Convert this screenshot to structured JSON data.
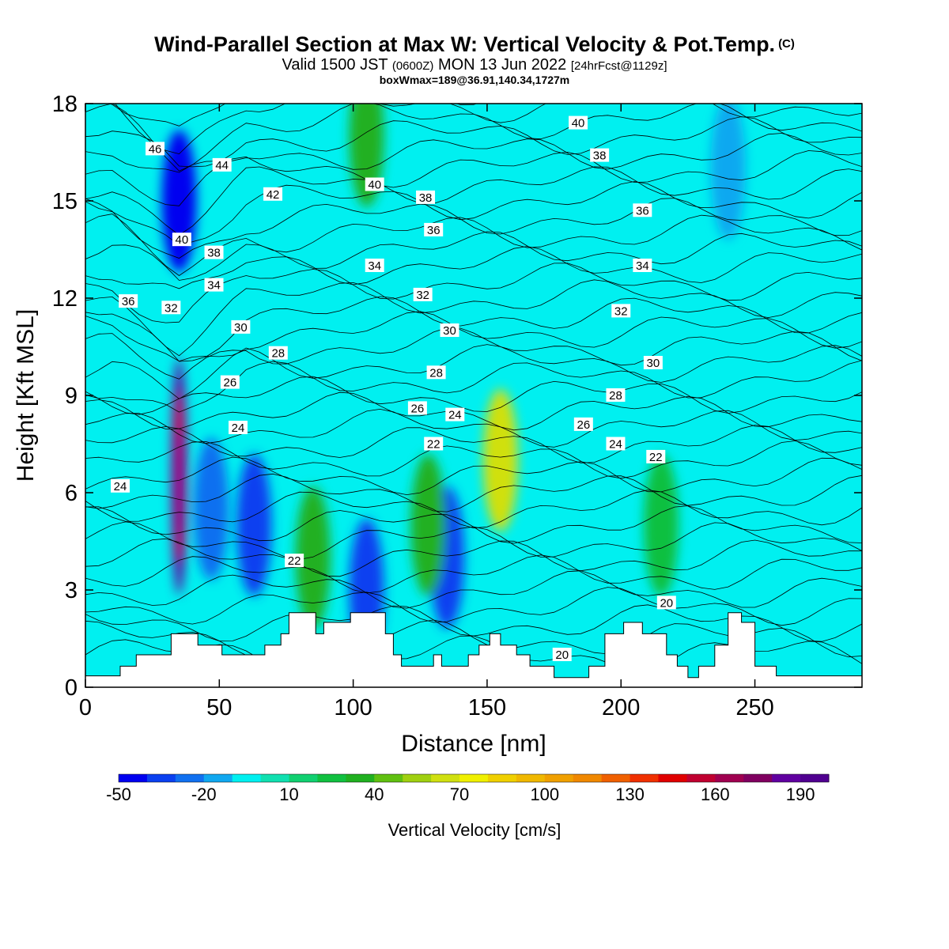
{
  "title": "Wind-Parallel Section at Max W: Vertical Velocity & Pot.Temp.",
  "title_mark": "(C)",
  "valid_prefix": "Valid 1500 JST",
  "valid_utc": "(0600Z)",
  "valid_date": "MON 13 Jun 2022",
  "forecast": "[24hrFcst@1129z]",
  "box_info": "boxWmax=189@36.91,140.34,1727m",
  "chart_data": {
    "type": "heatmap",
    "xlabel": "Distance [nm]",
    "ylabel": "Height [Kft MSL]",
    "xlim": [
      0,
      290
    ],
    "ylim": [
      0,
      18
    ],
    "x_ticks": [
      0,
      50,
      100,
      150,
      200,
      250
    ],
    "y_ticks": [
      0,
      3,
      6,
      9,
      12,
      15,
      18
    ],
    "grid": false,
    "colorbar": {
      "title": "Vertical Velocity [cm/s]",
      "levels": [
        -50,
        -40,
        -30,
        -20,
        -10,
        0,
        10,
        20,
        30,
        40,
        50,
        60,
        70,
        80,
        90,
        100,
        110,
        120,
        130,
        140,
        150,
        160,
        170,
        180,
        190,
        200
      ],
      "labels": [
        "-50",
        "-20",
        "10",
        "40",
        "70",
        "100",
        "130",
        "160",
        "190"
      ],
      "label_values": [
        -50,
        -20,
        10,
        40,
        70,
        100,
        130,
        160,
        190
      ],
      "colors": [
        "#0000f0",
        "#0a40f0",
        "#1070f0",
        "#10a8f0",
        "#00f0f0",
        "#10e0b0",
        "#10d070",
        "#10c040",
        "#20b020",
        "#60c010",
        "#a0d010",
        "#d0e010",
        "#f0f000",
        "#f0d000",
        "#f0b800",
        "#f0a000",
        "#f08800",
        "#f06000",
        "#f03000",
        "#e00000",
        "#c00030",
        "#a00050",
        "#800060",
        "#6000a0",
        "#500090"
      ]
    },
    "background_fill": "#00f0f0",
    "vertical_velocity_features": [
      {
        "x": 35,
        "y": 6.5,
        "value": 189
      },
      {
        "x": 35,
        "y": 15,
        "value": -50
      },
      {
        "x": 63,
        "y": 5,
        "value": -40
      },
      {
        "x": 47,
        "y": 5.5,
        "value": -30
      },
      {
        "x": 105,
        "y": 3,
        "value": -40
      },
      {
        "x": 135,
        "y": 4,
        "value": -40
      },
      {
        "x": 155,
        "y": 7,
        "value": 60
      },
      {
        "x": 128,
        "y": 5,
        "value": 30
      },
      {
        "x": 85,
        "y": 4,
        "value": 30
      },
      {
        "x": 105,
        "y": 17,
        "value": 30
      },
      {
        "x": 215,
        "y": 5,
        "value": 20
      },
      {
        "x": 240,
        "y": 16,
        "value": -20
      }
    ],
    "terrain_profile": {
      "x": [
        0,
        13,
        13,
        19,
        19,
        32,
        32,
        42,
        42,
        51,
        51,
        67,
        67,
        73,
        73,
        76,
        76,
        86,
        86,
        89,
        89,
        92,
        92,
        99,
        99,
        112,
        112,
        115,
        115,
        118,
        118,
        121,
        121,
        130,
        130,
        133,
        133,
        138,
        138,
        143,
        143,
        147,
        147,
        151,
        151,
        155,
        155,
        161,
        161,
        166,
        166,
        170,
        170,
        175,
        175,
        188,
        188,
        194,
        194,
        201,
        201,
        204,
        204,
        208,
        208,
        217,
        217,
        221,
        221,
        225,
        225,
        229,
        229,
        235,
        235,
        240,
        240,
        245,
        245,
        250,
        250,
        258,
        258,
        263,
        263,
        272,
        272,
        290
      ],
      "height": [
        0.35,
        0.35,
        0.65,
        0.65,
        1.0,
        1.0,
        1.65,
        1.65,
        1.3,
        1.3,
        1.0,
        1.0,
        1.3,
        1.3,
        1.65,
        1.65,
        2.3,
        2.3,
        1.65,
        1.65,
        2.0,
        2.0,
        2.0,
        2.0,
        2.3,
        2.3,
        1.65,
        1.65,
        1.0,
        1.0,
        0.65,
        0.65,
        0.65,
        0.65,
        1.0,
        1.0,
        0.65,
        0.65,
        0.65,
        0.65,
        1.0,
        1.0,
        1.3,
        1.3,
        1.65,
        1.65,
        1.3,
        1.3,
        1.0,
        1.0,
        0.65,
        0.65,
        0.65,
        0.65,
        0.3,
        0.3,
        0.65,
        0.65,
        1.65,
        1.65,
        2.0,
        2.0,
        2.0,
        2.0,
        1.65,
        1.65,
        1.0,
        1.0,
        0.65,
        0.65,
        0.3,
        0.3,
        0.65,
        0.65,
        1.3,
        1.3,
        2.3,
        2.3,
        2.0,
        2.0,
        0.65,
        0.65,
        0.35,
        0.35,
        0.35,
        0.35,
        0.35,
        0.35
      ]
    },
    "potential_temperature_labels": [
      {
        "text": "46",
        "x": 26,
        "y": 16.6
      },
      {
        "text": "44",
        "x": 51,
        "y": 16.1
      },
      {
        "text": "42",
        "x": 70,
        "y": 15.2
      },
      {
        "text": "40",
        "x": 36,
        "y": 13.8
      },
      {
        "text": "40",
        "x": 108,
        "y": 15.5
      },
      {
        "text": "40",
        "x": 184,
        "y": 17.4
      },
      {
        "text": "38",
        "x": 48,
        "y": 13.4
      },
      {
        "text": "38",
        "x": 127,
        "y": 15.1
      },
      {
        "text": "38",
        "x": 192,
        "y": 16.4
      },
      {
        "text": "36",
        "x": 16,
        "y": 11.9
      },
      {
        "text": "36",
        "x": 130,
        "y": 14.1
      },
      {
        "text": "36",
        "x": 208,
        "y": 14.7
      },
      {
        "text": "34",
        "x": 48,
        "y": 12.4
      },
      {
        "text": "34",
        "x": 108,
        "y": 13.0
      },
      {
        "text": "34",
        "x": 208,
        "y": 13.0
      },
      {
        "text": "32",
        "x": 32,
        "y": 11.7
      },
      {
        "text": "32",
        "x": 126,
        "y": 12.1
      },
      {
        "text": "32",
        "x": 200,
        "y": 11.6
      },
      {
        "text": "30",
        "x": 58,
        "y": 11.1
      },
      {
        "text": "30",
        "x": 136,
        "y": 11.0
      },
      {
        "text": "30",
        "x": 212,
        "y": 10.0
      },
      {
        "text": "28",
        "x": 72,
        "y": 10.3
      },
      {
        "text": "28",
        "x": 131,
        "y": 9.7
      },
      {
        "text": "28",
        "x": 198,
        "y": 9.0
      },
      {
        "text": "26",
        "x": 54,
        "y": 9.4
      },
      {
        "text": "26",
        "x": 124,
        "y": 8.6
      },
      {
        "text": "26",
        "x": 186,
        "y": 8.1
      },
      {
        "text": "24",
        "x": 57,
        "y": 8.0
      },
      {
        "text": "24",
        "x": 138,
        "y": 8.4
      },
      {
        "text": "24",
        "x": 198,
        "y": 7.5
      },
      {
        "text": "24",
        "x": 13,
        "y": 6.2
      },
      {
        "text": "22",
        "x": 130,
        "y": 7.5
      },
      {
        "text": "22",
        "x": 213,
        "y": 7.1
      },
      {
        "text": "22",
        "x": 78,
        "y": 3.9
      },
      {
        "text": "20",
        "x": 217,
        "y": 2.6
      },
      {
        "text": "20",
        "x": 178,
        "y": 1.0
      }
    ]
  }
}
